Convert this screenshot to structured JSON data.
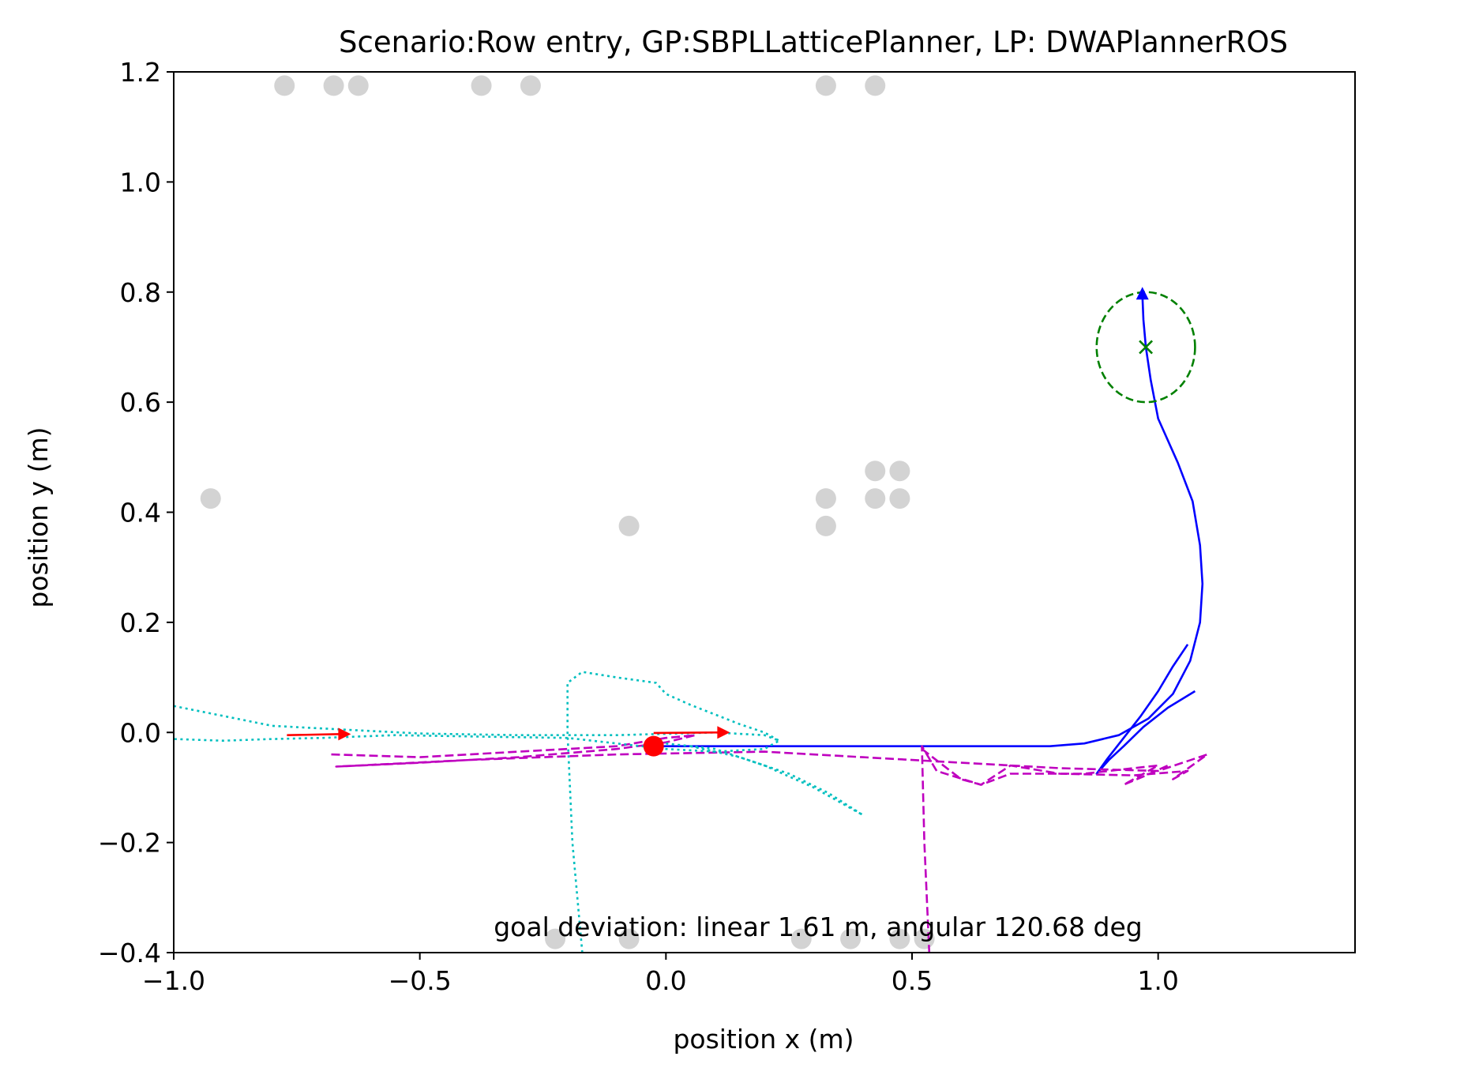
{
  "chart_data": {
    "type": "scatter",
    "title": "Scenario:Row entry, GP:SBPLLatticePlanner, LP: DWAPlannerROS",
    "xlabel": "position x (m)",
    "ylabel": "position y (m)",
    "xlim": [
      -1.0,
      1.4
    ],
    "ylim": [
      -0.4,
      1.2
    ],
    "xticks": [
      -1.0,
      -0.5,
      0.0,
      0.5,
      1.0
    ],
    "xtick_labels": [
      "−1.0",
      "−0.5",
      "0.0",
      "0.5",
      "1.0"
    ],
    "yticks": [
      -0.4,
      -0.2,
      0.0,
      0.2,
      0.4,
      0.6,
      0.8,
      1.0,
      1.2
    ],
    "ytick_labels": [
      "−0.4",
      "−0.2",
      "0.0",
      "0.2",
      "0.4",
      "0.6",
      "0.8",
      "1.0",
      "1.2"
    ],
    "grid": false,
    "annotation": "goal deviation: linear 1.61 m, angular 120.68 deg",
    "obstacles": {
      "color": "#d3d3d3",
      "points": [
        [
          -0.775,
          1.175
        ],
        [
          -0.675,
          1.175
        ],
        [
          -0.625,
          1.175
        ],
        [
          -0.375,
          1.175
        ],
        [
          -0.275,
          1.175
        ],
        [
          0.325,
          1.175
        ],
        [
          0.425,
          1.175
        ],
        [
          -0.925,
          0.425
        ],
        [
          -0.075,
          0.375
        ],
        [
          0.325,
          0.425
        ],
        [
          0.325,
          0.375
        ],
        [
          0.425,
          0.475
        ],
        [
          0.475,
          0.475
        ],
        [
          0.425,
          0.425
        ],
        [
          0.475,
          0.425
        ],
        [
          -0.225,
          -0.375
        ],
        [
          -0.075,
          -0.375
        ],
        [
          0.275,
          -0.375
        ],
        [
          0.375,
          -0.375
        ],
        [
          0.475,
          -0.375
        ],
        [
          0.525,
          -0.375
        ]
      ]
    },
    "robot": {
      "color": "#ff0000",
      "x": -0.025,
      "y": -0.025
    },
    "heading_arrows": {
      "color": "#ff0000",
      "arrows": [
        {
          "x": -0.77,
          "y": -0.005,
          "dx": 0.13,
          "dy": 0.002
        },
        {
          "x": -0.025,
          "y": -0.001,
          "dx": 0.155,
          "dy": 0.001
        }
      ]
    },
    "goal": {
      "color": "#008000",
      "x": 0.975,
      "y": 0.7,
      "tolerance_radius": 0.1
    },
    "series": [
      {
        "name": "global-plan",
        "style": "solid",
        "color": "#0000ff",
        "points": [
          [
            -0.03,
            -0.025
          ],
          [
            0.3,
            -0.025
          ],
          [
            0.6,
            -0.025
          ],
          [
            0.78,
            -0.025
          ],
          [
            0.85,
            -0.02
          ],
          [
            0.92,
            -0.005
          ],
          [
            0.98,
            0.025
          ],
          [
            1.03,
            0.07
          ],
          [
            1.065,
            0.13
          ],
          [
            1.085,
            0.2
          ],
          [
            1.09,
            0.27
          ],
          [
            1.085,
            0.34
          ],
          [
            1.07,
            0.42
          ],
          [
            1.04,
            0.49
          ],
          [
            1.0,
            0.57
          ],
          [
            0.985,
            0.64
          ],
          [
            0.975,
            0.7
          ],
          [
            0.97,
            0.75
          ],
          [
            0.968,
            0.795
          ]
        ]
      },
      {
        "name": "global-plan-spur",
        "style": "solid",
        "color": "#0000ff",
        "points": [
          [
            1.075,
            0.075
          ],
          [
            1.02,
            0.045
          ],
          [
            0.97,
            0.01
          ],
          [
            0.93,
            -0.025
          ],
          [
            0.9,
            -0.05
          ],
          [
            0.875,
            -0.075
          ],
          [
            0.895,
            -0.05
          ],
          [
            0.93,
            -0.01
          ],
          [
            0.965,
            0.03
          ],
          [
            1.0,
            0.075
          ],
          [
            1.03,
            0.12
          ],
          [
            1.06,
            0.16
          ]
        ]
      },
      {
        "name": "local-plan",
        "style": "dashed",
        "color": "#bf00bf",
        "points": [
          [
            -0.68,
            -0.04
          ],
          [
            -0.5,
            -0.045
          ],
          [
            -0.3,
            -0.035
          ],
          [
            -0.1,
            -0.025
          ],
          [
            0.0,
            -0.01
          ],
          [
            0.06,
            -0.005
          ],
          [
            0.0,
            -0.018
          ],
          [
            -0.1,
            -0.03
          ],
          [
            -0.3,
            -0.045
          ],
          [
            -0.5,
            -0.055
          ],
          [
            -0.67,
            -0.062
          ],
          [
            -0.4,
            -0.05
          ],
          [
            -0.1,
            -0.04
          ],
          [
            0.2,
            -0.035
          ],
          [
            0.4,
            -0.045
          ],
          [
            0.6,
            -0.055
          ],
          [
            0.8,
            -0.065
          ],
          [
            1.0,
            -0.07
          ],
          [
            1.1,
            -0.04
          ],
          [
            1.03,
            -0.085
          ],
          [
            1.06,
            -0.07
          ],
          [
            0.95,
            -0.078
          ],
          [
            0.8,
            -0.075
          ],
          [
            0.7,
            -0.06
          ],
          [
            0.64,
            -0.095
          ],
          [
            0.55,
            -0.07
          ],
          [
            0.52,
            -0.025
          ],
          [
            0.525,
            -0.2
          ],
          [
            0.535,
            -0.4
          ]
        ]
      },
      {
        "name": "local-plan-branch",
        "style": "dashed",
        "color": "#bf00bf",
        "points": [
          [
            0.52,
            -0.03
          ],
          [
            0.6,
            -0.085
          ],
          [
            0.64,
            -0.095
          ],
          [
            0.7,
            -0.075
          ],
          [
            0.85,
            -0.075
          ],
          [
            0.95,
            -0.065
          ],
          [
            1.0,
            -0.06
          ],
          [
            0.93,
            -0.095
          ],
          [
            0.97,
            -0.08
          ],
          [
            1.02,
            -0.06
          ]
        ]
      },
      {
        "name": "robot-trajectory",
        "style": "dotted",
        "color": "#00bfbf",
        "points": [
          [
            -1.0,
            0.048
          ],
          [
            -0.9,
            0.03
          ],
          [
            -0.8,
            0.012
          ],
          [
            -0.65,
            0.005
          ],
          [
            -0.5,
            -0.002
          ],
          [
            -0.3,
            -0.005
          ],
          [
            -0.1,
            -0.005
          ],
          [
            0.1,
            0.0
          ],
          [
            0.2,
            -0.005
          ],
          [
            0.23,
            -0.015
          ],
          [
            0.2,
            -0.03
          ],
          [
            0.1,
            -0.035
          ],
          [
            0.0,
            -0.03
          ],
          [
            -0.1,
            -0.02
          ],
          [
            -0.2,
            -0.01
          ]
        ]
      },
      {
        "name": "robot-trajectory-loop",
        "style": "dotted",
        "color": "#00bfbf",
        "points": [
          [
            -0.2,
            -0.01
          ],
          [
            -0.35,
            -0.008
          ],
          [
            -0.55,
            -0.005
          ],
          [
            -0.7,
            -0.01
          ],
          [
            -0.8,
            -0.012
          ],
          [
            -0.9,
            -0.015
          ],
          [
            -1.0,
            -0.012
          ]
        ]
      },
      {
        "name": "robot-trajectory-spike",
        "style": "dotted",
        "color": "#00bfbf",
        "points": [
          [
            -0.17,
            -0.4
          ],
          [
            -0.19,
            -0.2
          ],
          [
            -0.2,
            0.0
          ],
          [
            -0.2,
            0.09
          ],
          [
            -0.17,
            0.11
          ],
          [
            -0.1,
            0.1
          ],
          [
            -0.02,
            0.09
          ],
          [
            0.0,
            0.07
          ],
          [
            0.05,
            0.05
          ],
          [
            0.15,
            0.015
          ],
          [
            0.2,
            0.0
          ],
          [
            0.23,
            -0.015
          ]
        ]
      },
      {
        "name": "robot-trajectory-tail",
        "style": "dotted",
        "color": "#00bfbf",
        "points": [
          [
            0.0,
            -0.02
          ],
          [
            0.1,
            -0.03
          ],
          [
            0.2,
            -0.06
          ],
          [
            0.3,
            -0.1
          ],
          [
            0.4,
            -0.15
          ]
        ]
      },
      {
        "name": "robot-trajectory-tail-2",
        "style": "dotted",
        "color": "#00bfbf",
        "points": [
          [
            0.05,
            -0.025
          ],
          [
            0.15,
            -0.045
          ],
          [
            0.25,
            -0.075
          ],
          [
            0.33,
            -0.11
          ],
          [
            0.4,
            -0.15
          ]
        ]
      }
    ]
  }
}
